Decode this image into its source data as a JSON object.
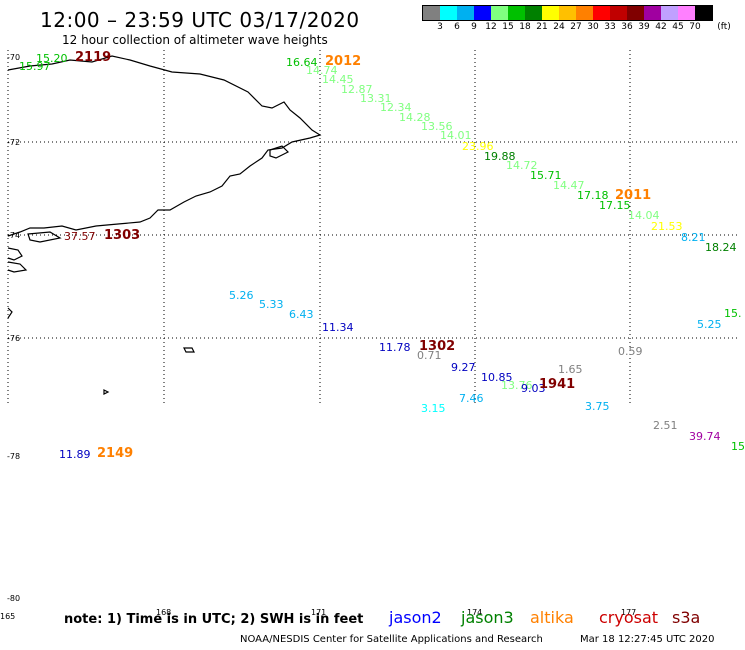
{
  "title": "12:00 – 23:59 UTC 03/17/2020",
  "subtitle": "12 hour collection of altimeter wave heights",
  "colorbar": {
    "colors": [
      "#808080",
      "#00ffff",
      "#00b0f0",
      "#0000ff",
      "#80ff80",
      "#00c000",
      "#008000",
      "#ffff00",
      "#ffc000",
      "#ff8000",
      "#ff0000",
      "#c00000",
      "#800000",
      "#a000a0",
      "#c0a0ff",
      "#ff80ff",
      "#000000"
    ],
    "labels": [
      "3",
      "6",
      "9",
      "12",
      "15",
      "18",
      "21",
      "24",
      "27",
      "30",
      "33",
      "36",
      "39",
      "42",
      "45",
      "70",
      "(ft)"
    ]
  },
  "lat_labels": [
    "-70",
    "-72",
    "-74",
    "-76",
    "-78",
    "-80"
  ],
  "lon_labels": [
    "165",
    "168",
    "171",
    "174",
    "177"
  ],
  "observations": [
    {
      "text": "15.20",
      "color": "#00c000"
    },
    {
      "text": "15.97",
      "color": "#00c000"
    },
    {
      "text": "16.64",
      "color": "#00c000"
    },
    {
      "text": "14.74",
      "color": "#80ff80"
    },
    {
      "text": "14.45",
      "color": "#80ff80"
    },
    {
      "text": "12.87",
      "color": "#80ff80"
    },
    {
      "text": "13.31",
      "color": "#80ff80"
    },
    {
      "text": "12.34",
      "color": "#80ff80"
    },
    {
      "text": "14.28",
      "color": "#80ff80"
    },
    {
      "text": "13.56",
      "color": "#80ff80"
    },
    {
      "text": "14.01",
      "color": "#80ff80"
    },
    {
      "text": "23.96",
      "color": "#ffff00"
    },
    {
      "text": "19.88",
      "color": "#008000"
    },
    {
      "text": "14.72",
      "color": "#80ff80"
    },
    {
      "text": "15.71",
      "color": "#00c000"
    },
    {
      "text": "14.47",
      "color": "#80ff80"
    },
    {
      "text": "17.18",
      "color": "#00c000"
    },
    {
      "text": "17.15",
      "color": "#00c000"
    },
    {
      "text": "14.04",
      "color": "#80ff80"
    },
    {
      "text": "21.53",
      "color": "#ffff00"
    },
    {
      "text": "8.21",
      "color": "#00b0f0"
    },
    {
      "text": "18.24",
      "color": "#008000"
    },
    {
      "text": "15.",
      "color": "#00c000"
    },
    {
      "text": "5.25",
      "color": "#00b0f0"
    },
    {
      "text": "37.57",
      "color": "#800000"
    },
    {
      "text": "5.26",
      "color": "#00b0f0"
    },
    {
      "text": "5.33",
      "color": "#00b0f0"
    },
    {
      "text": "6.43",
      "color": "#00b0f0"
    },
    {
      "text": "11.34",
      "color": "#0000c0"
    },
    {
      "text": "11.78",
      "color": "#0000c0"
    },
    {
      "text": "0.71",
      "color": "#808080"
    },
    {
      "text": "9.27",
      "color": "#0000c0"
    },
    {
      "text": "10.85",
      "color": "#0000c0"
    },
    {
      "text": "13.76",
      "color": "#80ff80"
    },
    {
      "text": "9.03",
      "color": "#0000c0"
    },
    {
      "text": "1.65",
      "color": "#808080"
    },
    {
      "text": "0.59",
      "color": "#808080"
    },
    {
      "text": "7.46",
      "color": "#00b0f0"
    },
    {
      "text": "3.15",
      "color": "#00ffff"
    },
    {
      "text": "3.75",
      "color": "#00b0f0"
    },
    {
      "text": "2.51",
      "color": "#808080"
    },
    {
      "text": "39.74",
      "color": "#a000a0"
    },
    {
      "text": "15",
      "color": "#00c000"
    },
    {
      "text": "11.89",
      "color": "#0000c0"
    }
  ],
  "time_labels": [
    {
      "text": "2119",
      "color": "#800000"
    },
    {
      "text": "2012",
      "color": "#ff8000"
    },
    {
      "text": "2011",
      "color": "#ff8000"
    },
    {
      "text": "1303",
      "color": "#800000"
    },
    {
      "text": "1302",
      "color": "#800000"
    },
    {
      "text": "1941",
      "color": "#800000"
    },
    {
      "text": "2149",
      "color": "#ff8000"
    }
  ],
  "note": "note: 1) Time is in UTC; 2) SWH is in feet",
  "satellites": [
    {
      "name": "jason2",
      "color": "#0000ff"
    },
    {
      "name": "jason3",
      "color": "#008000"
    },
    {
      "name": "altika",
      "color": "#ff8000"
    },
    {
      "name": "cryosat",
      "color": "#cc0000"
    },
    {
      "name": "s3a",
      "color": "#800000"
    }
  ],
  "footer": "NOAA/NESDIS Center for Satellite Applications and Research",
  "footer_date": "Mar 18 12:27:45 UTC 2020"
}
